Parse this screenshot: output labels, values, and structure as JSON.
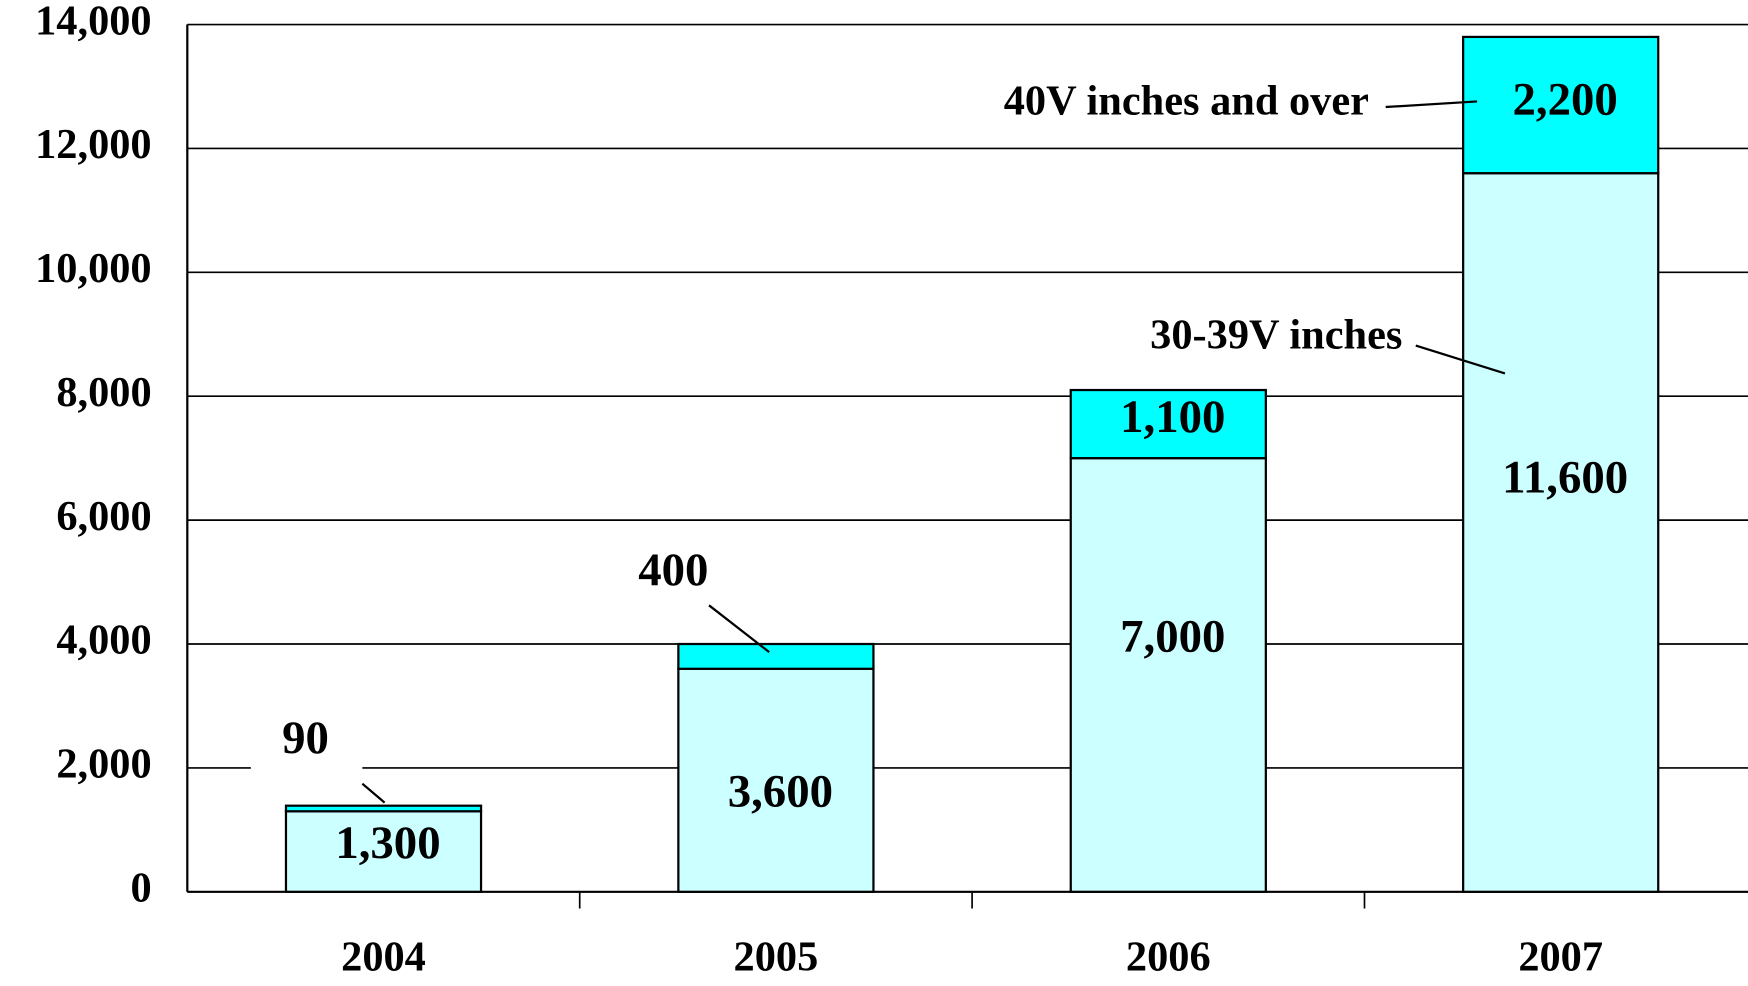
{
  "chart_data": {
    "type": "stacked_bar",
    "categories": [
      "2004",
      "2005",
      "2006",
      "2007"
    ],
    "series": [
      {
        "name": "30-39V inches",
        "color": "#ccffff",
        "values": [
          1300,
          3600,
          7000,
          11600
        ],
        "value_labels": [
          "1,300",
          "3,600",
          "7,000",
          "11,600"
        ]
      },
      {
        "name": "40V inches and over",
        "color": "#00ffff",
        "values": [
          90,
          400,
          1100,
          2200
        ],
        "value_labels": [
          "90",
          "400",
          "1,100",
          "2,200"
        ]
      }
    ],
    "ylim": [
      0,
      14000
    ],
    "yticks": [
      0,
      {
        "value": 2000,
        "label": "2,000"
      },
      {
        "value": 4000,
        "label": "4,000"
      },
      {
        "value": 6000,
        "label": "6,000"
      },
      {
        "value": 8000,
        "label": "8,000"
      },
      {
        "value": 10000,
        "label": "10,000"
      },
      {
        "value": 12000,
        "label": "12,000"
      },
      {
        "value": 14000,
        "label": "14,000"
      }
    ],
    "grid": true
  }
}
